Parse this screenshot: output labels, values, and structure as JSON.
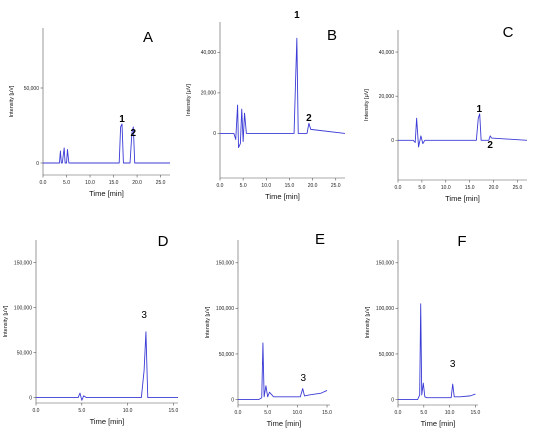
{
  "chart_data": [
    {
      "type": "line",
      "panel_label": "A",
      "xlabel": "Time [min]",
      "ylabel": "Intensity [μV]",
      "xlim": [
        0,
        27
      ],
      "ylim": [
        -8000,
        90000
      ],
      "xticks": [
        "0.0",
        "5.0",
        "10.0",
        "15.0",
        "20.0",
        "25.0"
      ],
      "yticks": [
        "0",
        "50,000"
      ],
      "x": [
        0,
        3.5,
        3.7,
        3.9,
        4.1,
        4.5,
        4.7,
        5.0,
        5.2,
        5.5,
        6.0,
        10,
        16.2,
        16.5,
        16.8,
        17.1,
        18.5,
        18.9,
        19.2,
        19.5,
        27
      ],
      "y": [
        0,
        0,
        8000,
        0,
        0,
        10000,
        0,
        0,
        9000,
        0,
        0,
        0,
        0,
        24000,
        26000,
        0,
        0,
        20000,
        24000,
        0,
        0
      ],
      "peak_labels": [
        {
          "text": "1",
          "x": 16.8
        },
        {
          "text": "2",
          "x": 19.2
        }
      ]
    },
    {
      "type": "line",
      "panel_label": "B",
      "xlabel": "Time [min]",
      "ylabel": "Intensity [μV]",
      "xlim": [
        0,
        27
      ],
      "ylim": [
        -22000,
        55000
      ],
      "xticks": [
        "0.0",
        "5.0",
        "10.0",
        "15.0",
        "20.0",
        "25.0"
      ],
      "yticks": [
        "0",
        "20,000",
        "40,000"
      ],
      "x": [
        0,
        3.0,
        3.4,
        3.8,
        4.0,
        4.4,
        4.7,
        5.0,
        5.3,
        5.7,
        6.0,
        10,
        16.0,
        16.3,
        16.6,
        16.9,
        18.8,
        19.2,
        19.6,
        27
      ],
      "y": [
        0,
        0,
        -3000,
        14000,
        -7000,
        -5000,
        12000,
        -4000,
        10000,
        0,
        0,
        0,
        0,
        24000,
        47000,
        0,
        0,
        5000,
        2000,
        0
      ],
      "peak_labels": [
        {
          "text": "1",
          "x": 16.6
        },
        {
          "text": "2",
          "x": 19.2
        }
      ]
    },
    {
      "type": "line",
      "panel_label": "C",
      "xlabel": "Time [min]",
      "ylabel": "Intensity [μV]",
      "xlim": [
        0,
        27
      ],
      "ylim": [
        -18000,
        50000
      ],
      "xticks": [
        "0.0",
        "5.0",
        "10.0",
        "15.0",
        "20.0",
        "25.0"
      ],
      "yticks": [
        "0",
        "20,000",
        "40,000"
      ],
      "x": [
        0,
        3.2,
        3.6,
        3.9,
        4.3,
        4.8,
        5.2,
        5.6,
        10,
        16.4,
        16.8,
        17.1,
        17.4,
        19.0,
        19.3,
        19.6,
        27
      ],
      "y": [
        0,
        0,
        -1000,
        10000,
        -3000,
        2000,
        -1500,
        0,
        0,
        0,
        10000,
        12000,
        0,
        0,
        2000,
        1000,
        0
      ],
      "peak_labels": [
        {
          "text": "1",
          "x": 17.0
        },
        {
          "text": "2",
          "x": 19.3
        }
      ]
    },
    {
      "type": "line",
      "panel_label": "D",
      "xlabel": "Time [min]",
      "ylabel": "Intensity [μV]",
      "xlim": [
        0,
        15.5
      ],
      "ylim": [
        -6000,
        175000
      ],
      "xticks": [
        "0.0",
        "5.0",
        "10.0",
        "15.0"
      ],
      "yticks": [
        "0",
        "50,000",
        "100,000",
        "150,000"
      ],
      "x": [
        0,
        4.6,
        4.8,
        5.0,
        5.2,
        5.5,
        11.5,
        11.8,
        12.0,
        12.2,
        15.5
      ],
      "y": [
        0,
        0,
        5000,
        -3000,
        2000,
        0,
        0,
        30000,
        73000,
        0,
        0
      ],
      "peak_labels": [
        {
          "text": "3",
          "x": 11.8
        }
      ]
    },
    {
      "type": "line",
      "panel_label": "E",
      "xlabel": "Time [min]",
      "ylabel": "Intensity [μV]",
      "xlim": [
        0,
        15.5
      ],
      "ylim": [
        -6000,
        175000
      ],
      "xticks": [
        "0.0",
        "5.0",
        "10.0",
        "15.0"
      ],
      "yticks": [
        "0",
        "50,000",
        "100,000",
        "150,000"
      ],
      "x": [
        0,
        3.5,
        4.0,
        4.2,
        4.4,
        4.7,
        5.0,
        5.3,
        6.0,
        8.0,
        10.5,
        10.9,
        11.2,
        12.0,
        14.0,
        15.0
      ],
      "y": [
        0,
        0,
        2000,
        62000,
        3000,
        15000,
        3000,
        8000,
        3000,
        3000,
        3000,
        12000,
        4000,
        5000,
        7000,
        10000
      ],
      "peak_labels": [
        {
          "text": "3",
          "x": 11.0
        }
      ]
    },
    {
      "type": "line",
      "panel_label": "F",
      "xlabel": "Time [min]",
      "ylabel": "Intensity [μV]",
      "xlim": [
        0,
        15.5
      ],
      "ylim": [
        -6000,
        175000
      ],
      "xticks": [
        "0.0",
        "5.0",
        "10.0",
        "15.0"
      ],
      "yticks": [
        "0",
        "50,000",
        "100,000",
        "150,000"
      ],
      "x": [
        0,
        3.8,
        4.2,
        4.4,
        4.6,
        4.9,
        5.2,
        5.6,
        8.0,
        10.3,
        10.6,
        10.9,
        12.0,
        14.0,
        15.0
      ],
      "y": [
        0,
        0,
        5000,
        105000,
        5000,
        18000,
        3000,
        2000,
        2000,
        2000,
        17000,
        3000,
        3000,
        4000,
        6000
      ],
      "peak_labels": [
        {
          "text": "3",
          "x": 10.6
        }
      ]
    }
  ]
}
